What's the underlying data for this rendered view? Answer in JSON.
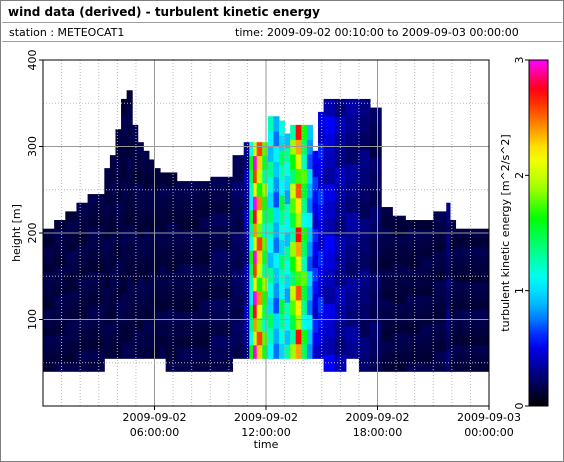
{
  "header": {
    "title": "wind data (derived) - turbulent kinetic energy",
    "station": "station : METEOCAT1",
    "time_range": "time: 2009-09-02 00:10:00 to 2009-09-03 00:00:00"
  },
  "chart_data": {
    "type": "heatmap",
    "xlabel": "time",
    "ylabel": "height [m]",
    "colorbar_label": "turbulent kinetic energy [m^2/s^2]",
    "x_ticks": [
      {
        "hour": 6,
        "line1": "2009-09-02",
        "line2": "06:00:00"
      },
      {
        "hour": 12,
        "line1": "2009-09-02",
        "line2": "12:00:00"
      },
      {
        "hour": 18,
        "line1": "2009-09-02",
        "line2": "18:00:00"
      },
      {
        "hour": 24,
        "line1": "2009-09-03",
        "line2": "00:00:00"
      }
    ],
    "xlim_hours": [
      0,
      24
    ],
    "y_ticks": [
      100,
      200,
      300,
      400
    ],
    "ylim": [
      0,
      400
    ],
    "colorbar_ticks": [
      0,
      1,
      2,
      3
    ],
    "clim": [
      0,
      3
    ],
    "colormap": [
      "#000000",
      "#00007f",
      "#0000ff",
      "#00a0ff",
      "#00ffff",
      "#00ff7f",
      "#00ff00",
      "#b0ff00",
      "#ffff00",
      "#ff7f00",
      "#ff0000",
      "#ff00ff"
    ],
    "grid": true,
    "columns": [
      {
        "t0": 0.0,
        "t1": 0.6,
        "bottom": 40,
        "top": 205,
        "tke": 0.15
      },
      {
        "t0": 0.6,
        "t1": 1.2,
        "bottom": 40,
        "top": 215,
        "tke": 0.15
      },
      {
        "t0": 1.2,
        "t1": 1.8,
        "bottom": 40,
        "top": 225,
        "tke": 0.15
      },
      {
        "t0": 1.8,
        "t1": 2.4,
        "bottom": 40,
        "top": 235,
        "tke": 0.15
      },
      {
        "t0": 2.4,
        "t1": 3.3,
        "bottom": 40,
        "top": 245,
        "tke": 0.15
      },
      {
        "t0": 3.3,
        "t1": 3.6,
        "bottom": 55,
        "top": 275,
        "tke": 0.15
      },
      {
        "t0": 3.6,
        "t1": 3.9,
        "bottom": 55,
        "top": 290,
        "tke": 0.15
      },
      {
        "t0": 3.9,
        "t1": 4.2,
        "bottom": 55,
        "top": 320,
        "tke": 0.15
      },
      {
        "t0": 4.2,
        "t1": 4.5,
        "bottom": 55,
        "top": 355,
        "tke": 0.15
      },
      {
        "t0": 4.5,
        "t1": 4.8,
        "bottom": 55,
        "top": 365,
        "tke": 0.15
      },
      {
        "t0": 4.8,
        "t1": 5.1,
        "bottom": 55,
        "top": 325,
        "tke": 0.15
      },
      {
        "t0": 5.1,
        "t1": 5.4,
        "bottom": 55,
        "top": 305,
        "tke": 0.15
      },
      {
        "t0": 5.4,
        "t1": 5.7,
        "bottom": 55,
        "top": 295,
        "tke": 0.15
      },
      {
        "t0": 5.7,
        "t1": 6.0,
        "bottom": 55,
        "top": 285,
        "tke": 0.15
      },
      {
        "t0": 6.0,
        "t1": 6.3,
        "bottom": 55,
        "top": 275,
        "tke": 0.15
      },
      {
        "t0": 6.3,
        "t1": 6.6,
        "bottom": 55,
        "top": 270,
        "tke": 0.15
      },
      {
        "t0": 6.6,
        "t1": 7.2,
        "bottom": 40,
        "top": 270,
        "tke": 0.15
      },
      {
        "t0": 7.2,
        "t1": 8.4,
        "bottom": 40,
        "top": 260,
        "tke": 0.15
      },
      {
        "t0": 8.4,
        "t1": 9.0,
        "bottom": 40,
        "top": 260,
        "tke": 0.15
      },
      {
        "t0": 9.0,
        "t1": 10.2,
        "bottom": 40,
        "top": 265,
        "tke": 0.18
      },
      {
        "t0": 10.2,
        "t1": 10.8,
        "bottom": 55,
        "top": 290,
        "tke": 0.2
      },
      {
        "t0": 10.8,
        "t1": 11.1,
        "bottom": 55,
        "top": 305,
        "tke": 0.35
      },
      {
        "t0": 11.1,
        "t1": 11.3,
        "bottom": 55,
        "top": 305,
        "tke": 1.4
      },
      {
        "t0": 11.3,
        "t1": 11.5,
        "bottom": 55,
        "top": 305,
        "tke": 2.7
      },
      {
        "t0": 11.5,
        "t1": 11.8,
        "bottom": 55,
        "top": 305,
        "tke": 2.2
      },
      {
        "t0": 11.8,
        "t1": 12.1,
        "bottom": 55,
        "top": 305,
        "tke": 1.6
      },
      {
        "t0": 12.1,
        "t1": 12.4,
        "bottom": 55,
        "top": 335,
        "tke": 1.2
      },
      {
        "t0": 12.4,
        "t1": 12.7,
        "bottom": 55,
        "top": 335,
        "tke": 0.9
      },
      {
        "t0": 12.7,
        "t1": 13.0,
        "bottom": 55,
        "top": 330,
        "tke": 1.3
      },
      {
        "t0": 13.0,
        "t1": 13.3,
        "bottom": 55,
        "top": 315,
        "tke": 1.1
      },
      {
        "t0": 13.3,
        "t1": 13.6,
        "bottom": 55,
        "top": 325,
        "tke": 1.7
      },
      {
        "t0": 13.6,
        "t1": 13.9,
        "bottom": 55,
        "top": 325,
        "tke": 2.3
      },
      {
        "t0": 13.9,
        "t1": 14.2,
        "bottom": 55,
        "top": 325,
        "tke": 1.5
      },
      {
        "t0": 14.2,
        "t1": 14.5,
        "bottom": 55,
        "top": 325,
        "tke": 0.9
      },
      {
        "t0": 14.5,
        "t1": 14.8,
        "bottom": 55,
        "top": 295,
        "tke": 0.55
      },
      {
        "t0": 14.8,
        "t1": 15.1,
        "bottom": 55,
        "top": 340,
        "tke": 0.55
      },
      {
        "t0": 15.1,
        "t1": 15.7,
        "bottom": 40,
        "top": 355,
        "tke": 0.45
      },
      {
        "t0": 15.7,
        "t1": 16.3,
        "bottom": 40,
        "top": 355,
        "tke": 0.35
      },
      {
        "t0": 16.3,
        "t1": 17.0,
        "bottom": 55,
        "top": 355,
        "tke": 0.3
      },
      {
        "t0": 17.0,
        "t1": 17.6,
        "bottom": 40,
        "top": 355,
        "tke": 0.25
      },
      {
        "t0": 17.6,
        "t1": 18.2,
        "bottom": 40,
        "top": 345,
        "tke": 0.2
      },
      {
        "t0": 18.2,
        "t1": 18.8,
        "bottom": 40,
        "top": 230,
        "tke": 0.15
      },
      {
        "t0": 18.8,
        "t1": 19.5,
        "bottom": 40,
        "top": 220,
        "tke": 0.15
      },
      {
        "t0": 19.5,
        "t1": 20.3,
        "bottom": 40,
        "top": 215,
        "tke": 0.15
      },
      {
        "t0": 20.3,
        "t1": 21.0,
        "bottom": 40,
        "top": 215,
        "tke": 0.15
      },
      {
        "t0": 21.0,
        "t1": 21.7,
        "bottom": 40,
        "top": 225,
        "tke": 0.15
      },
      {
        "t0": 21.7,
        "t1": 21.9,
        "bottom": 40,
        "top": 235,
        "tke": 0.25
      },
      {
        "t0": 21.9,
        "t1": 22.2,
        "bottom": 40,
        "top": 215,
        "tke": 0.15
      },
      {
        "t0": 22.2,
        "t1": 24.0,
        "bottom": 40,
        "top": 205,
        "tke": 0.15
      }
    ]
  }
}
